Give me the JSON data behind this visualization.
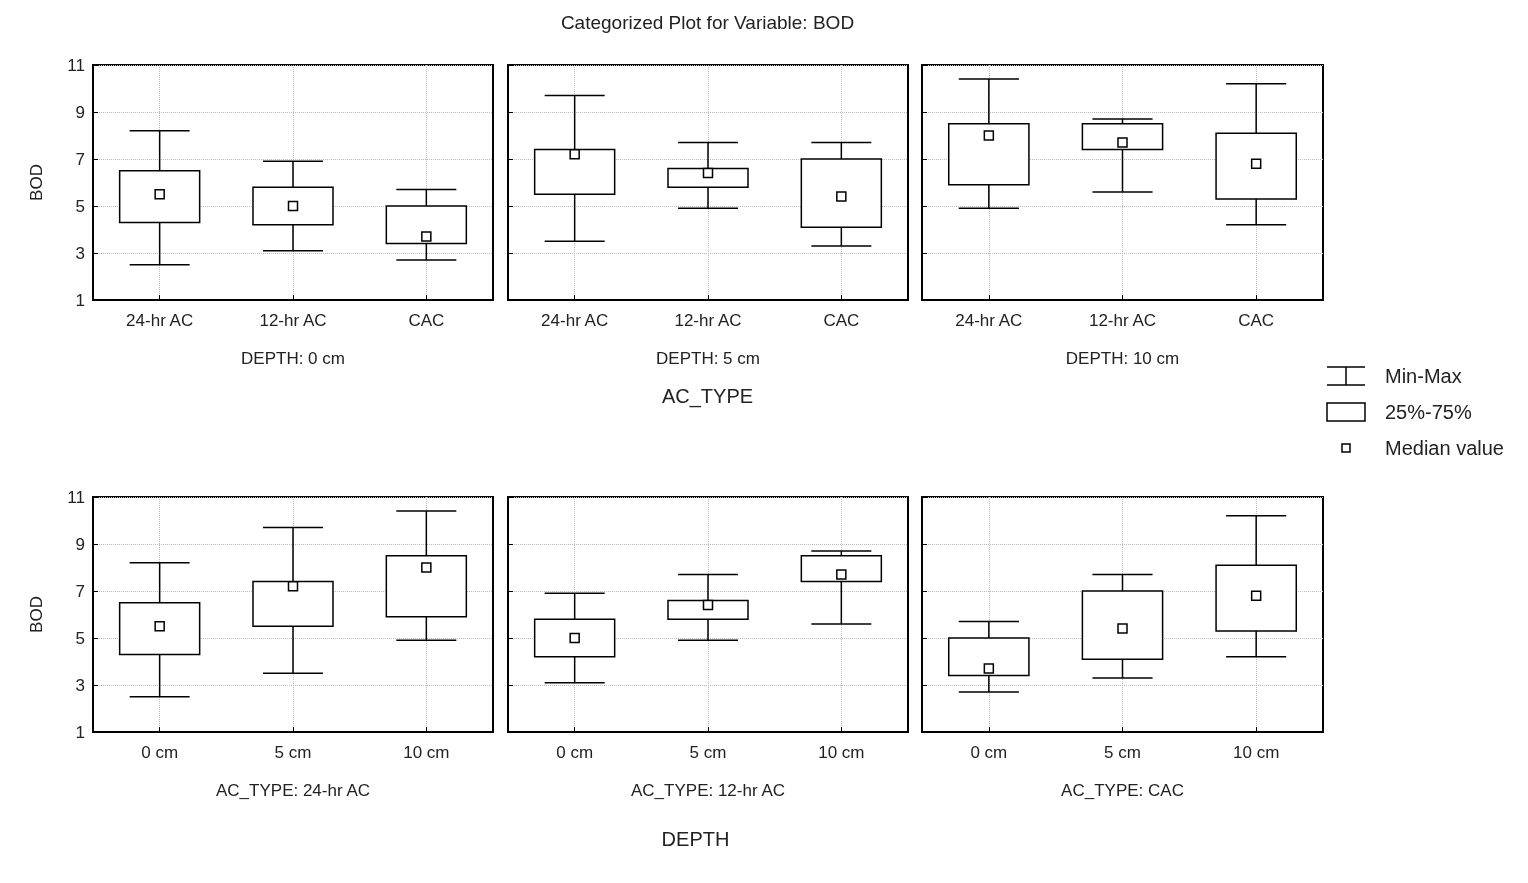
{
  "chart_data": [
    {
      "type": "box",
      "categories": [
        "24-hr AC",
        "12-hr AC",
        "CAC"
      ],
      "xlabel": "DEPTH: 0 cm",
      "ylabel": "BOD",
      "ylim": [
        1,
        11
      ],
      "yticks": [
        1,
        3,
        5,
        7,
        9,
        11
      ],
      "grid": true,
      "marker": "square",
      "boxes": [
        {
          "low": 2.5,
          "q1": 4.3,
          "median": 5.5,
          "q3": 6.5,
          "high": 8.2
        },
        {
          "low": 3.1,
          "q1": 4.2,
          "median": 5.0,
          "q3": 5.8,
          "high": 6.9
        },
        {
          "low": 2.7,
          "q1": 3.4,
          "median": 3.7,
          "q3": 5.0,
          "high": 5.7
        }
      ]
    },
    {
      "type": "box",
      "title": "Categorized Plot for Variable: BOD",
      "categories": [
        "24-hr AC",
        "12-hr AC",
        "CAC"
      ],
      "xlabel": "DEPTH: 5 cm",
      "annotations": [
        "AC_TYPE"
      ],
      "ylim": [
        1,
        11
      ],
      "yticks": [
        1,
        3,
        5,
        7,
        9,
        11
      ],
      "grid": true,
      "marker": "square",
      "tick_labels": "x",
      "boxes": [
        {
          "low": 3.5,
          "q1": 5.5,
          "median": 7.2,
          "q3": 7.4,
          "high": 9.7
        },
        {
          "low": 4.9,
          "q1": 5.8,
          "median": 6.4,
          "q3": 6.6,
          "high": 7.7
        },
        {
          "low": 3.3,
          "q1": 4.1,
          "median": 5.4,
          "q3": 7.0,
          "high": 7.7
        }
      ]
    },
    {
      "type": "box",
      "categories": [
        "24-hr AC",
        "12-hr AC",
        "CAC"
      ],
      "xlabel": "DEPTH: 10 cm",
      "annotations": [
        "Min-Max",
        "25%-75%",
        "Median value"
      ],
      "ylim": [
        1,
        11
      ],
      "yticks": [
        1,
        3,
        5,
        7,
        9,
        11
      ],
      "grid": true,
      "marker": "square",
      "tick_labels": "x",
      "boxes": [
        {
          "low": 4.9,
          "q1": 5.9,
          "median": 8.0,
          "q3": 8.5,
          "high": 10.4
        },
        {
          "low": 5.6,
          "q1": 7.4,
          "median": 7.7,
          "q3": 8.5,
          "high": 8.7
        },
        {
          "low": 4.2,
          "q1": 5.3,
          "median": 6.8,
          "q3": 8.1,
          "high": 10.2
        }
      ]
    },
    {
      "type": "box",
      "categories": [
        "0 cm",
        "5 cm",
        "10 cm"
      ],
      "xlabel": "AC_TYPE: 24-hr AC",
      "ylabel": "BOD",
      "ylim": [
        1,
        11
      ],
      "yticks": [
        1,
        3,
        5,
        7,
        9,
        11
      ],
      "grid": true,
      "marker": "square",
      "boxes": [
        {
          "low": 2.5,
          "q1": 4.3,
          "median": 5.5,
          "q3": 6.5,
          "high": 8.2
        },
        {
          "low": 3.5,
          "q1": 5.5,
          "median": 7.2,
          "q3": 7.4,
          "high": 9.7
        },
        {
          "low": 4.9,
          "q1": 5.9,
          "median": 8.0,
          "q3": 8.5,
          "high": 10.4
        }
      ]
    },
    {
      "type": "box",
      "categories": [
        "0 cm",
        "5 cm",
        "10 cm"
      ],
      "xlabel": "AC_TYPE: 12-hr AC",
      "annotations": [
        "DEPTH"
      ],
      "ylim": [
        1,
        11
      ],
      "yticks": [
        1,
        3,
        5,
        7,
        9,
        11
      ],
      "grid": true,
      "marker": "square",
      "tick_labels": "x",
      "boxes": [
        {
          "low": 3.1,
          "q1": 4.2,
          "median": 5.0,
          "q3": 5.8,
          "high": 6.9
        },
        {
          "low": 4.9,
          "q1": 5.8,
          "median": 6.4,
          "q3": 6.6,
          "high": 7.7
        },
        {
          "low": 5.6,
          "q1": 7.4,
          "median": 7.7,
          "q3": 8.5,
          "high": 8.7
        }
      ]
    },
    {
      "type": "box",
      "categories": [
        "0 cm",
        "5 cm",
        "10 cm"
      ],
      "xlabel": "AC_TYPE: CAC",
      "ylim": [
        1,
        11
      ],
      "yticks": [
        1,
        3,
        5,
        7,
        9,
        11
      ],
      "grid": true,
      "marker": "square",
      "tick_labels": "x",
      "boxes": [
        {
          "low": 2.7,
          "q1": 3.4,
          "median": 3.7,
          "q3": 5.0,
          "high": 5.7
        },
        {
          "low": 3.3,
          "q1": 4.1,
          "median": 5.4,
          "q3": 7.0,
          "high": 7.7
        },
        {
          "low": 4.2,
          "q1": 5.3,
          "median": 6.8,
          "q3": 8.1,
          "high": 10.2
        }
      ]
    }
  ]
}
